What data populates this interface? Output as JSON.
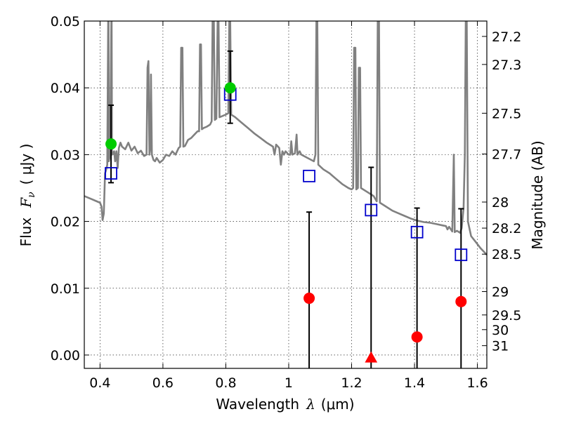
{
  "chart_data": {
    "type": "scatter",
    "xlabel_text": "Wavelength",
    "xlabel_symbol": "λ",
    "xlabel_unit": "(μm)",
    "ylabel_text": "Flux",
    "ylabel_symbol": "F",
    "ylabel_subscript": "ν",
    "ylabel_unit": "( μJy )",
    "y2label": "Magnitude (AB)",
    "xlim": [
      0.35,
      1.63
    ],
    "ylim": [
      -0.002,
      0.05
    ],
    "grid": true,
    "x_ticks": [
      {
        "value": 0.4,
        "label": "0.4"
      },
      {
        "value": 0.6,
        "label": "0.6"
      },
      {
        "value": 0.8,
        "label": "0.8"
      },
      {
        "value": 1.0,
        "label": "1"
      },
      {
        "value": 1.2,
        "label": "1.2"
      },
      {
        "value": 1.4,
        "label": "1.4"
      },
      {
        "value": 1.6,
        "label": "1.6"
      }
    ],
    "y_ticks": [
      {
        "value": 0.0,
        "label": "0.00"
      },
      {
        "value": 0.01,
        "label": "0.01"
      },
      {
        "value": 0.02,
        "label": "0.02"
      },
      {
        "value": 0.03,
        "label": "0.03"
      },
      {
        "value": 0.04,
        "label": "0.04"
      },
      {
        "value": 0.05,
        "label": "0.05"
      }
    ],
    "y2_ticks": [
      {
        "flux": 0.0477,
        "label": "27.2"
      },
      {
        "flux": 0.0435,
        "label": "27.3"
      },
      {
        "flux": 0.0362,
        "label": "27.5"
      },
      {
        "flux": 0.0301,
        "label": "27.7"
      },
      {
        "flux": 0.0229,
        "label": "28"
      },
      {
        "flux": 0.019,
        "label": "28.2"
      },
      {
        "flux": 0.0151,
        "label": "28.5"
      },
      {
        "flux": 0.0095,
        "label": "29"
      },
      {
        "flux": 0.006,
        "label": "29.5"
      },
      {
        "flux": 0.0038,
        "label": "30"
      },
      {
        "flux": 0.0014,
        "label": "31"
      }
    ],
    "model_spectrum": {
      "color": "#808080",
      "points": [
        [
          0.35,
          0.0238
        ],
        [
          0.37,
          0.0234
        ],
        [
          0.39,
          0.023
        ],
        [
          0.4,
          0.0228
        ],
        [
          0.405,
          0.0222
        ],
        [
          0.408,
          0.0202
        ],
        [
          0.412,
          0.0212
        ],
        [
          0.416,
          0.0272
        ],
        [
          0.42,
          0.0278
        ],
        [
          0.423,
          0.0285
        ],
        [
          0.426,
          0.05
        ],
        [
          0.427,
          0.05
        ],
        [
          0.428,
          0.029
        ],
        [
          0.432,
          0.03
        ],
        [
          0.436,
          0.05
        ],
        [
          0.437,
          0.05
        ],
        [
          0.438,
          0.03
        ],
        [
          0.445,
          0.0305
        ],
        [
          0.448,
          0.029
        ],
        [
          0.452,
          0.0305
        ],
        [
          0.456,
          0.028
        ],
        [
          0.46,
          0.031
        ],
        [
          0.465,
          0.0318
        ],
        [
          0.47,
          0.0312
        ],
        [
          0.48,
          0.0308
        ],
        [
          0.49,
          0.0318
        ],
        [
          0.5,
          0.0306
        ],
        [
          0.51,
          0.0312
        ],
        [
          0.52,
          0.0302
        ],
        [
          0.53,
          0.0306
        ],
        [
          0.54,
          0.0298
        ],
        [
          0.548,
          0.03
        ],
        [
          0.551,
          0.043
        ],
        [
          0.554,
          0.044
        ],
        [
          0.557,
          0.03
        ],
        [
          0.56,
          0.031
        ],
        [
          0.562,
          0.042
        ],
        [
          0.565,
          0.03
        ],
        [
          0.57,
          0.0292
        ],
        [
          0.575,
          0.029
        ],
        [
          0.58,
          0.0295
        ],
        [
          0.59,
          0.0288
        ],
        [
          0.6,
          0.0292
        ],
        [
          0.61,
          0.03
        ],
        [
          0.62,
          0.0298
        ],
        [
          0.63,
          0.0305
        ],
        [
          0.64,
          0.03
        ],
        [
          0.65,
          0.031
        ],
        [
          0.655,
          0.0312
        ],
        [
          0.658,
          0.046
        ],
        [
          0.662,
          0.046
        ],
        [
          0.665,
          0.0312
        ],
        [
          0.67,
          0.0313
        ],
        [
          0.68,
          0.0322
        ],
        [
          0.69,
          0.0325
        ],
        [
          0.7,
          0.033
        ],
        [
          0.71,
          0.0335
        ],
        [
          0.715,
          0.0335
        ],
        [
          0.718,
          0.0465
        ],
        [
          0.721,
          0.0465
        ],
        [
          0.724,
          0.0338
        ],
        [
          0.73,
          0.034
        ],
        [
          0.74,
          0.0342
        ],
        [
          0.75,
          0.0345
        ],
        [
          0.755,
          0.035
        ],
        [
          0.758,
          0.05
        ],
        [
          0.762,
          0.05
        ],
        [
          0.765,
          0.0352
        ],
        [
          0.77,
          0.0354
        ],
        [
          0.774,
          0.05
        ],
        [
          0.777,
          0.05
        ],
        [
          0.78,
          0.0356
        ],
        [
          0.79,
          0.0358
        ],
        [
          0.8,
          0.036
        ],
        [
          0.808,
          0.0362
        ],
        [
          0.811,
          0.05
        ],
        [
          0.814,
          0.05
        ],
        [
          0.817,
          0.036
        ],
        [
          0.83,
          0.0356
        ],
        [
          0.85,
          0.0348
        ],
        [
          0.87,
          0.034
        ],
        [
          0.89,
          0.0332
        ],
        [
          0.91,
          0.0325
        ],
        [
          0.93,
          0.0318
        ],
        [
          0.95,
          0.0312
        ],
        [
          0.955,
          0.03
        ],
        [
          0.96,
          0.0315
        ],
        [
          0.97,
          0.031
        ],
        [
          0.975,
          0.0285
        ],
        [
          0.98,
          0.0305
        ],
        [
          0.985,
          0.03
        ],
        [
          0.99,
          0.0305
        ],
        [
          1.0,
          0.03
        ],
        [
          1.005,
          0.03
        ],
        [
          1.008,
          0.032
        ],
        [
          1.012,
          0.03
        ],
        [
          1.02,
          0.0302
        ],
        [
          1.025,
          0.033
        ],
        [
          1.028,
          0.03
        ],
        [
          1.035,
          0.0305
        ],
        [
          1.04,
          0.03
        ],
        [
          1.06,
          0.0295
        ],
        [
          1.08,
          0.029
        ],
        [
          1.085,
          0.03
        ],
        [
          1.088,
          0.05
        ],
        [
          1.091,
          0.05
        ],
        [
          1.094,
          0.0285
        ],
        [
          1.11,
          0.0278
        ],
        [
          1.13,
          0.0272
        ],
        [
          1.15,
          0.0264
        ],
        [
          1.17,
          0.0256
        ],
        [
          1.19,
          0.025
        ],
        [
          1.2,
          0.0248
        ],
        [
          1.205,
          0.025
        ],
        [
          1.208,
          0.046
        ],
        [
          1.212,
          0.046
        ],
        [
          1.215,
          0.0248
        ],
        [
          1.22,
          0.025
        ],
        [
          1.223,
          0.043
        ],
        [
          1.227,
          0.043
        ],
        [
          1.23,
          0.025
        ],
        [
          1.25,
          0.0244
        ],
        [
          1.27,
          0.0238
        ],
        [
          1.28,
          0.023
        ],
        [
          1.283,
          0.05
        ],
        [
          1.287,
          0.05
        ],
        [
          1.29,
          0.0228
        ],
        [
          1.31,
          0.0222
        ],
        [
          1.33,
          0.0216
        ],
        [
          1.35,
          0.0212
        ],
        [
          1.37,
          0.0208
        ],
        [
          1.39,
          0.0204
        ],
        [
          1.41,
          0.0201
        ],
        [
          1.43,
          0.0199
        ],
        [
          1.45,
          0.0198
        ],
        [
          1.47,
          0.0196
        ],
        [
          1.49,
          0.0194
        ],
        [
          1.5,
          0.0193
        ],
        [
          1.505,
          0.0188
        ],
        [
          1.51,
          0.0192
        ],
        [
          1.52,
          0.0185
        ],
        [
          1.525,
          0.03
        ],
        [
          1.528,
          0.0184
        ],
        [
          1.535,
          0.0186
        ],
        [
          1.545,
          0.0183
        ],
        [
          1.55,
          0.019
        ],
        [
          1.556,
          0.022
        ],
        [
          1.56,
          0.03
        ],
        [
          1.563,
          0.05
        ],
        [
          1.566,
          0.05
        ],
        [
          1.57,
          0.02
        ],
        [
          1.58,
          0.0178
        ],
        [
          1.59,
          0.0172
        ],
        [
          1.6,
          0.0166
        ],
        [
          1.61,
          0.016
        ],
        [
          1.62,
          0.0155
        ],
        [
          1.63,
          0.015
        ]
      ]
    },
    "model_points": {
      "color": "#0000cc",
      "marker": "square",
      "points": [
        {
          "x": 0.435,
          "y": 0.0272
        },
        {
          "x": 0.814,
          "y": 0.039
        },
        {
          "x": 1.065,
          "y": 0.0268
        },
        {
          "x": 1.262,
          "y": 0.0217
        },
        {
          "x": 1.408,
          "y": 0.0184
        },
        {
          "x": 1.548,
          "y": 0.015
        }
      ]
    },
    "detections": {
      "color": "#00cc00",
      "marker": "circle",
      "points": [
        {
          "x": 0.435,
          "y": 0.0316,
          "yerr_low": 0.0058,
          "yerr_high": 0.0058
        },
        {
          "x": 0.814,
          "y": 0.04,
          "yerr_low": 0.0053,
          "yerr_high": 0.0055
        }
      ]
    },
    "non_detections": {
      "color": "#ff0000",
      "marker": "circle",
      "points": [
        {
          "x": 1.065,
          "y": 0.0085,
          "err_top": 0.0214
        },
        {
          "x": 1.408,
          "y": 0.0027,
          "err_top": 0.022
        },
        {
          "x": 1.548,
          "y": 0.008,
          "err_top": 0.0219
        }
      ]
    },
    "upper_limit": {
      "color": "#ff0000",
      "marker": "triangle",
      "points": [
        {
          "x": 1.262,
          "y": -0.0004,
          "err_top": 0.0281
        }
      ]
    }
  }
}
